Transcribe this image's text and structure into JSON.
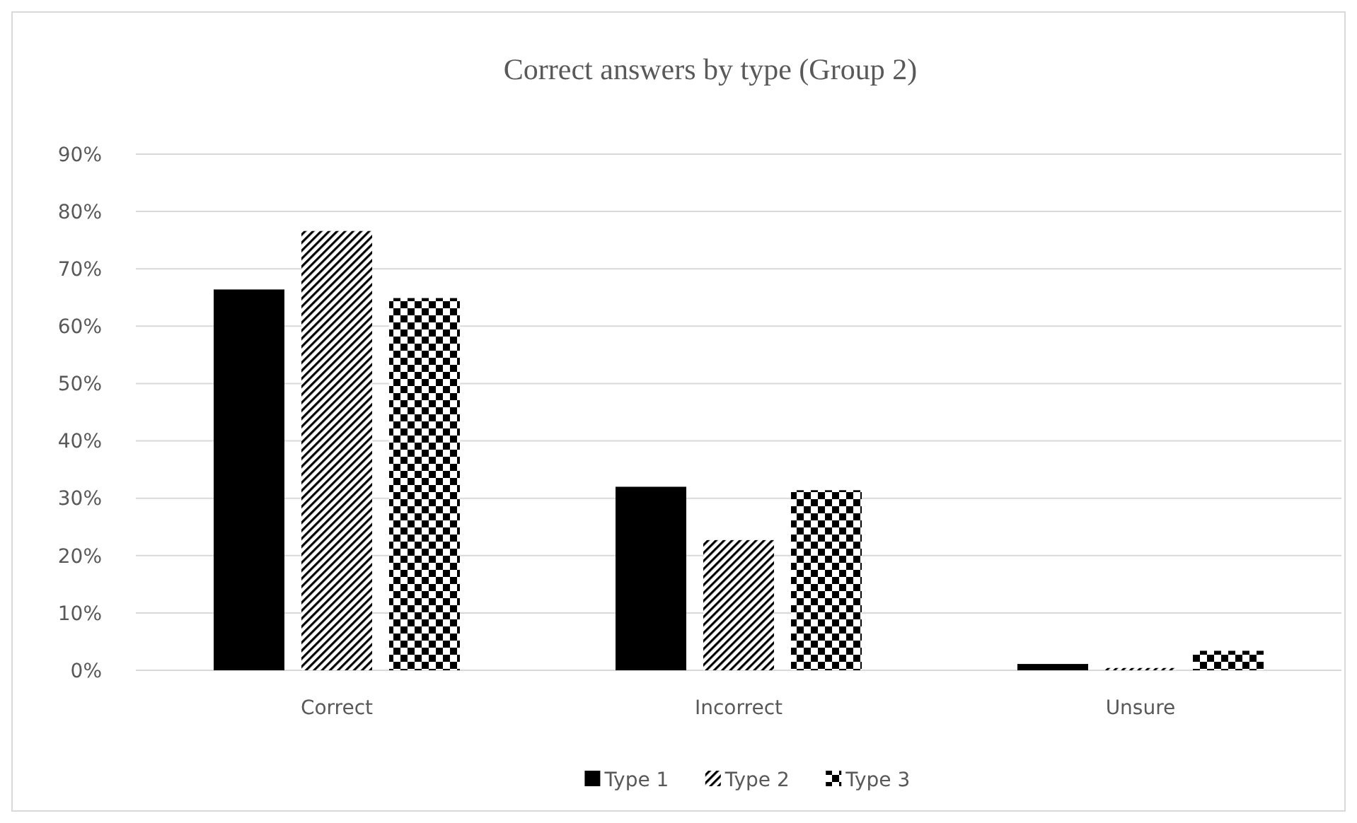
{
  "chart_data": {
    "type": "bar",
    "title": "Correct answers by type (Group 2)",
    "categories": [
      "Correct",
      "Incorrect",
      "Unsure"
    ],
    "series": [
      {
        "name": "Type 1",
        "color": "#000000",
        "values": [
          66.4,
          32.0,
          1.1
        ]
      },
      {
        "name": "Type 2",
        "color": "#000000",
        "values": [
          76.6,
          22.7,
          0.4
        ]
      },
      {
        "name": "Type 3",
        "color": "#000000",
        "values": [
          64.9,
          31.4,
          3.4
        ]
      }
    ],
    "ylim": [
      0,
      90
    ],
    "yticks": [
      {
        "value": 0,
        "label": "0%"
      },
      {
        "value": 10,
        "label": "10%"
      },
      {
        "value": 20,
        "label": "20%"
      },
      {
        "value": 30,
        "label": "30%"
      },
      {
        "value": 40,
        "label": "40%"
      },
      {
        "value": 50,
        "label": "50%"
      },
      {
        "value": 60,
        "label": "60%"
      },
      {
        "value": 70,
        "label": "70%"
      },
      {
        "value": 80,
        "label": "80%"
      },
      {
        "value": 90,
        "label": "90%"
      }
    ],
    "grid": "y",
    "legend": "bottom"
  }
}
